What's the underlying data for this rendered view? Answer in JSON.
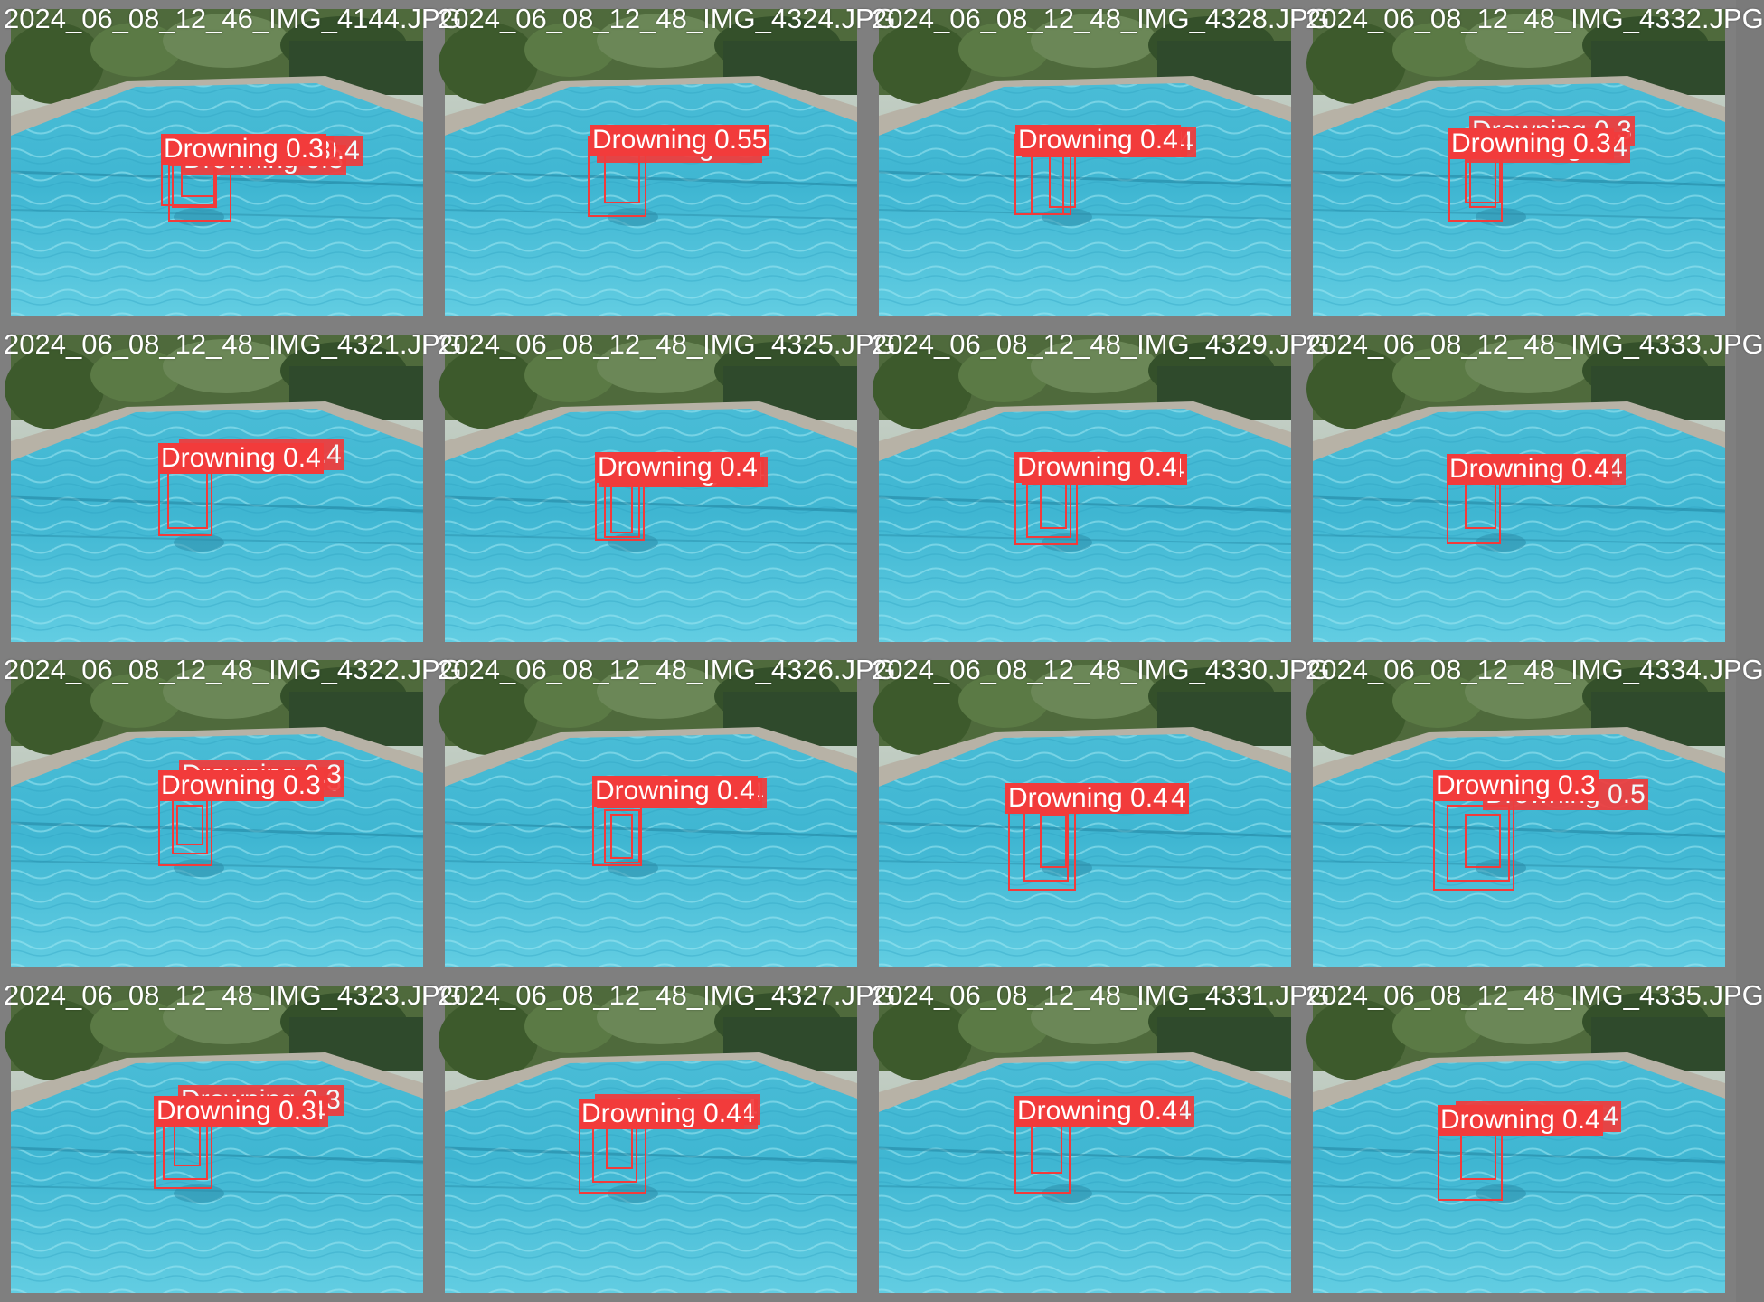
{
  "accent_color": "#f23b3b",
  "tiles": [
    {
      "filename": "2024_06_08_12_46_IMG_4144.JPG",
      "detections": [
        {
          "label": "Drowning 0.3"
        },
        {
          "label": "Drowning 0.3"
        },
        {
          "label": "Drowning 0.4"
        },
        {
          "label": "Drowning 0.3"
        }
      ]
    },
    {
      "filename": "2024_06_08_12_48_IMG_4324.JPG",
      "detections": [
        {
          "label": "Drowning 0.55"
        },
        {
          "label": "Drowning 0.5"
        }
      ]
    },
    {
      "filename": "2024_06_08_12_48_IMG_4328.JPG",
      "detections": [
        {
          "label": "Drowning 0.4"
        },
        {
          "label": "Drowning 0.4"
        },
        {
          "label": "Drowning 0.4"
        }
      ]
    },
    {
      "filename": "2024_06_08_12_48_IMG_4332.JPG",
      "detections": [
        {
          "label": "Drowning 0.3"
        },
        {
          "label": "Drowning 0.4"
        },
        {
          "label": "Drowning 0.3"
        }
      ]
    },
    {
      "filename": "2024_06_08_12_48_IMG_4321.JPG",
      "detections": [
        {
          "label": "Drowning 0.4"
        },
        {
          "label": "Drowning 0.4"
        }
      ]
    },
    {
      "filename": "2024_06_08_12_48_IMG_4325.JPG",
      "detections": [
        {
          "label": "Drowning 0.4"
        },
        {
          "label": "Drowning 0.4"
        },
        {
          "label": "Drowning 0.4"
        }
      ]
    },
    {
      "filename": "2024_06_08_12_48_IMG_4329.JPG",
      "detections": [
        {
          "label": "Drowning 0.4"
        },
        {
          "label": "Drowning 0.4"
        },
        {
          "label": "Drowning 0.4"
        }
      ]
    },
    {
      "filename": "2024_06_08_12_48_IMG_4333.JPG",
      "detections": [
        {
          "label": "Drowning 0.4"
        },
        {
          "label": "Drowning 0.4"
        }
      ]
    },
    {
      "filename": "2024_06_08_12_48_IMG_4322.JPG",
      "detections": [
        {
          "label": "Drowning 0.3"
        },
        {
          "label": "Drowning 0.3"
        },
        {
          "label": "Drowning 0.3"
        }
      ]
    },
    {
      "filename": "2024_06_08_12_48_IMG_4326.JPG",
      "detections": [
        {
          "label": "Drowning 0.4"
        },
        {
          "label": "Drowning 0.4"
        },
        {
          "label": "Drowning 0.4"
        }
      ]
    },
    {
      "filename": "2024_06_08_12_48_IMG_4330.JPG",
      "detections": [
        {
          "label": "Drowning 0.4"
        },
        {
          "label": "Drowning 0.4"
        },
        {
          "label": "Drowning 0.4"
        }
      ]
    },
    {
      "filename": "2024_06_08_12_48_IMG_4334.JPG",
      "detections": [
        {
          "label": "Drowning 0.3"
        },
        {
          "label": "Drowning 0.5"
        },
        {
          "label": "Drowning 0.3"
        }
      ]
    },
    {
      "filename": "2024_06_08_12_48_IMG_4323.JPG",
      "detections": [
        {
          "label": "Drowning 0.3"
        },
        {
          "label": "Drowning 0.4"
        },
        {
          "label": "Drowning 0.3"
        }
      ]
    },
    {
      "filename": "2024_06_08_12_48_IMG_4327.JPG",
      "detections": [
        {
          "label": "Drowning 0.4"
        },
        {
          "label": "Drowning 0.4"
        },
        {
          "label": "Drowning 0.4"
        }
      ]
    },
    {
      "filename": "2024_06_08_12_48_IMG_4331.JPG",
      "detections": [
        {
          "label": "Drowning 0.4"
        },
        {
          "label": "Drowning 0.4"
        }
      ]
    },
    {
      "filename": "2024_06_08_12_48_IMG_4335.JPG",
      "detections": [
        {
          "label": "Drowning 0.4"
        },
        {
          "label": "Drowning 0.4"
        }
      ]
    }
  ]
}
